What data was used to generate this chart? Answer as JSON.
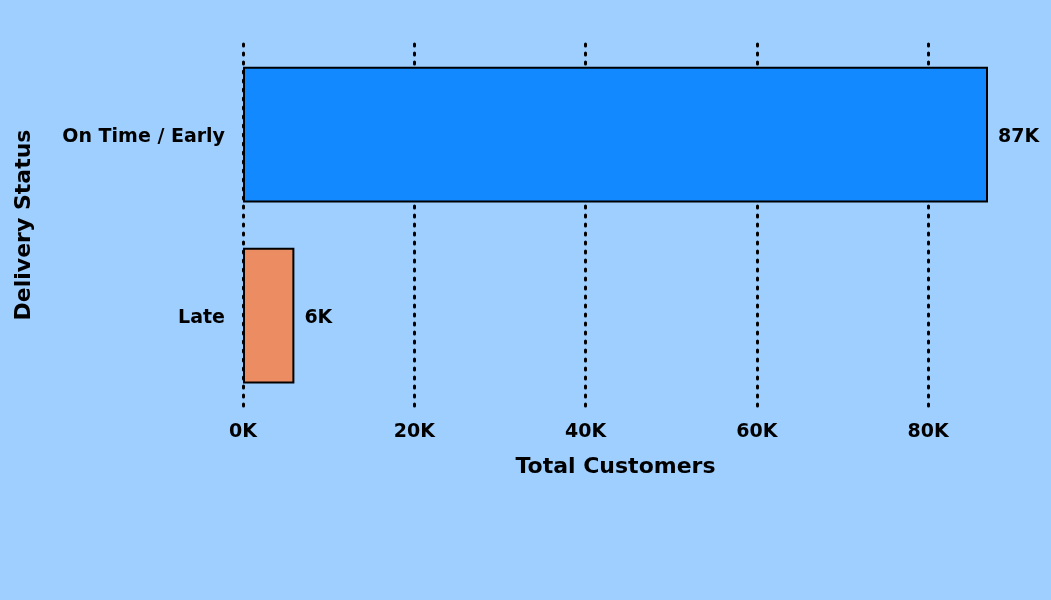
{
  "chart_data": {
    "type": "bar",
    "orientation": "horizontal",
    "xlabel": "Total Customers",
    "ylabel": "Delivery Status",
    "categories": [
      "On Time / Early",
      "Late"
    ],
    "values": [
      87000,
      6000
    ],
    "colors": [
      "#1289ff",
      "#eb8c63"
    ],
    "value_labels": [
      "87K",
      "6K"
    ],
    "xticks": [
      {
        "value": 0,
        "label": "0K"
      },
      {
        "value": 20000,
        "label": "20K"
      },
      {
        "value": 40000,
        "label": "40K"
      },
      {
        "value": 60000,
        "label": "60K"
      },
      {
        "value": 80000,
        "label": "80K"
      }
    ],
    "xlim": [
      0,
      87000
    ],
    "grid": "x"
  }
}
